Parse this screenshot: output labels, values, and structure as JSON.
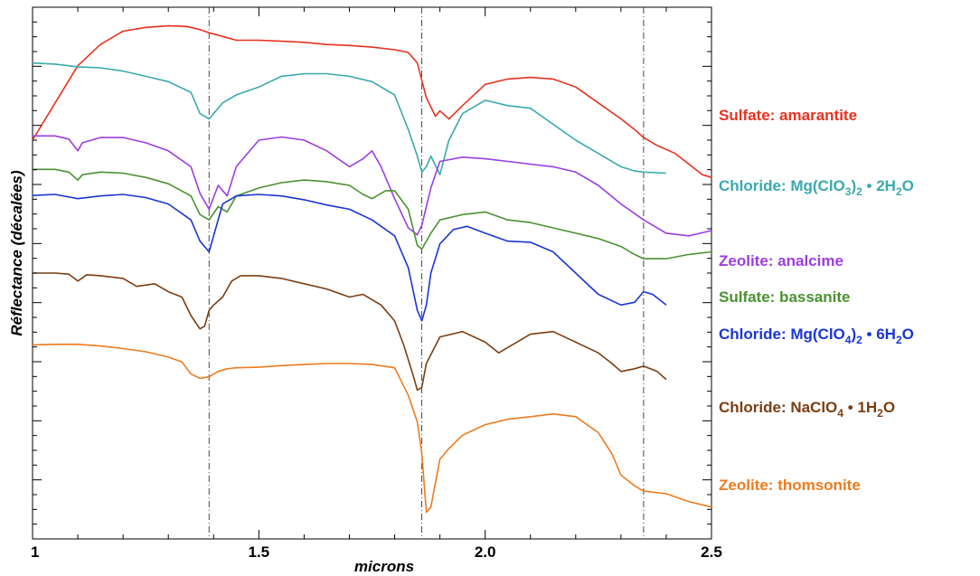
{
  "chart_data": {
    "type": "line",
    "xlabel": "microns",
    "ylabel": "Réflectance (décalées)",
    "xlim": [
      1.0,
      2.5
    ],
    "ylim": [
      0,
      1
    ],
    "xticks": [
      {
        "value": 1.0,
        "label": "1"
      },
      {
        "value": 1.5,
        "label": "1.5"
      },
      {
        "value": 2.0,
        "label": "2.0"
      },
      {
        "value": 2.5,
        "label": "2.5"
      }
    ],
    "yticks_shown_without_labels": true,
    "grid": false,
    "reference_lines_x": [
      1.39,
      1.86,
      2.35
    ],
    "legend": "right",
    "series": [
      {
        "name": "Sulfate: amarantite",
        "label_parts": [
          "Sulfate: amarantite"
        ],
        "color": "#e8321e",
        "x": [
          1.0,
          1.05,
          1.1,
          1.15,
          1.2,
          1.25,
          1.3,
          1.34,
          1.37,
          1.39,
          1.42,
          1.45,
          1.5,
          1.55,
          1.6,
          1.65,
          1.7,
          1.75,
          1.8,
          1.83,
          1.85,
          1.87,
          1.89,
          1.9,
          1.92,
          1.95,
          2.0,
          2.05,
          2.1,
          2.15,
          2.2,
          2.25,
          2.3,
          2.33,
          2.35,
          2.38,
          2.42,
          2.45,
          2.48,
          2.5
        ],
        "y": [
          0.75,
          0.82,
          0.89,
          0.93,
          0.955,
          0.962,
          0.965,
          0.964,
          0.958,
          0.952,
          0.945,
          0.938,
          0.938,
          0.936,
          0.934,
          0.93,
          0.928,
          0.925,
          0.92,
          0.915,
          0.895,
          0.83,
          0.795,
          0.805,
          0.79,
          0.815,
          0.855,
          0.865,
          0.868,
          0.865,
          0.85,
          0.82,
          0.79,
          0.77,
          0.755,
          0.74,
          0.725,
          0.705,
          0.685,
          0.68
        ]
      },
      {
        "name": "Chloride: Mg(ClO3)2 • 2H2O",
        "label_parts": [
          "Chloride: Mg(ClO",
          "3",
          ")",
          "2",
          " • 2H",
          "2",
          "O"
        ],
        "color": "#3aa9ad",
        "x": [
          1.0,
          1.05,
          1.1,
          1.15,
          1.2,
          1.25,
          1.3,
          1.35,
          1.37,
          1.39,
          1.4,
          1.42,
          1.45,
          1.5,
          1.55,
          1.6,
          1.65,
          1.7,
          1.75,
          1.8,
          1.83,
          1.85,
          1.86,
          1.87,
          1.88,
          1.9,
          1.92,
          1.95,
          2.0,
          2.05,
          2.1,
          2.15,
          2.2,
          2.25,
          2.3,
          2.33,
          2.35,
          2.4
        ],
        "y": [
          0.895,
          0.893,
          0.888,
          0.886,
          0.88,
          0.87,
          0.86,
          0.84,
          0.8,
          0.79,
          0.8,
          0.82,
          0.835,
          0.85,
          0.87,
          0.875,
          0.875,
          0.87,
          0.86,
          0.835,
          0.77,
          0.72,
          0.69,
          0.7,
          0.72,
          0.685,
          0.75,
          0.8,
          0.825,
          0.815,
          0.81,
          0.78,
          0.75,
          0.725,
          0.7,
          0.692,
          0.69,
          0.688
        ]
      },
      {
        "name": "Zeolite: analcime",
        "label_parts": [
          "Zeolite: analcime"
        ],
        "color": "#9b3de3",
        "x": [
          1.0,
          1.05,
          1.08,
          1.1,
          1.11,
          1.15,
          1.2,
          1.25,
          1.3,
          1.35,
          1.37,
          1.39,
          1.41,
          1.43,
          1.45,
          1.5,
          1.55,
          1.6,
          1.65,
          1.7,
          1.73,
          1.75,
          1.77,
          1.8,
          1.83,
          1.85,
          1.86,
          1.88,
          1.9,
          1.95,
          2.0,
          2.05,
          2.1,
          2.15,
          2.2,
          2.25,
          2.3,
          2.35,
          2.4,
          2.45,
          2.5
        ],
        "y": [
          0.758,
          0.758,
          0.752,
          0.73,
          0.745,
          0.755,
          0.755,
          0.745,
          0.73,
          0.7,
          0.65,
          0.62,
          0.665,
          0.645,
          0.7,
          0.75,
          0.756,
          0.75,
          0.73,
          0.7,
          0.715,
          0.73,
          0.7,
          0.64,
          0.585,
          0.572,
          0.59,
          0.66,
          0.71,
          0.718,
          0.715,
          0.71,
          0.705,
          0.7,
          0.69,
          0.665,
          0.63,
          0.6,
          0.575,
          0.57,
          0.58
        ]
      },
      {
        "name": "Sulfate: bassanite",
        "label_parts": [
          "Sulfate: bassanite"
        ],
        "color": "#4a9230",
        "x": [
          1.0,
          1.05,
          1.08,
          1.1,
          1.11,
          1.15,
          1.2,
          1.25,
          1.3,
          1.35,
          1.37,
          1.39,
          1.41,
          1.43,
          1.45,
          1.5,
          1.55,
          1.6,
          1.65,
          1.7,
          1.73,
          1.75,
          1.78,
          1.8,
          1.83,
          1.85,
          1.86,
          1.88,
          1.9,
          1.95,
          2.0,
          2.05,
          2.1,
          2.15,
          2.2,
          2.25,
          2.3,
          2.33,
          2.35,
          2.4,
          2.45,
          2.5
        ],
        "y": [
          0.695,
          0.695,
          0.69,
          0.675,
          0.685,
          0.69,
          0.688,
          0.68,
          0.668,
          0.645,
          0.61,
          0.6,
          0.625,
          0.615,
          0.645,
          0.66,
          0.67,
          0.675,
          0.672,
          0.665,
          0.648,
          0.64,
          0.655,
          0.655,
          0.62,
          0.552,
          0.545,
          0.575,
          0.6,
          0.61,
          0.615,
          0.6,
          0.595,
          0.585,
          0.575,
          0.565,
          0.55,
          0.535,
          0.527,
          0.527,
          0.535,
          0.54
        ]
      },
      {
        "name": "Chloride: Mg(ClO4)2 • 6H2O",
        "label_parts": [
          "Chloride: Mg(ClO",
          "4",
          ")",
          "2",
          " • 6H",
          "2",
          "O"
        ],
        "color": "#1a35d8",
        "x": [
          1.0,
          1.05,
          1.1,
          1.15,
          1.2,
          1.25,
          1.3,
          1.35,
          1.37,
          1.39,
          1.4,
          1.42,
          1.45,
          1.5,
          1.55,
          1.6,
          1.65,
          1.7,
          1.75,
          1.8,
          1.83,
          1.85,
          1.86,
          1.87,
          1.88,
          1.9,
          1.93,
          1.96,
          2.0,
          2.05,
          2.1,
          2.15,
          2.2,
          2.25,
          2.3,
          2.33,
          2.35,
          2.37,
          2.4
        ],
        "y": [
          0.646,
          0.648,
          0.64,
          0.645,
          0.648,
          0.642,
          0.63,
          0.6,
          0.56,
          0.54,
          0.57,
          0.63,
          0.645,
          0.648,
          0.645,
          0.638,
          0.628,
          0.62,
          0.6,
          0.57,
          0.51,
          0.43,
          0.41,
          0.44,
          0.5,
          0.555,
          0.582,
          0.588,
          0.575,
          0.56,
          0.558,
          0.54,
          0.5,
          0.46,
          0.44,
          0.445,
          0.465,
          0.46,
          0.44
        ]
      },
      {
        "name": "Chloride: NaClO4 • 1H2O",
        "label_parts": [
          "Chloride: NaClO",
          "4",
          " • 1H",
          "2",
          "O"
        ],
        "color": "#7a3e12",
        "x": [
          1.0,
          1.05,
          1.08,
          1.1,
          1.12,
          1.15,
          1.2,
          1.23,
          1.27,
          1.3,
          1.33,
          1.35,
          1.37,
          1.38,
          1.39,
          1.4,
          1.42,
          1.44,
          1.46,
          1.5,
          1.55,
          1.6,
          1.65,
          1.7,
          1.73,
          1.75,
          1.77,
          1.8,
          1.82,
          1.84,
          1.85,
          1.86,
          1.87,
          1.9,
          1.95,
          2.0,
          2.03,
          2.05,
          2.1,
          2.15,
          2.2,
          2.25,
          2.28,
          2.3,
          2.33,
          2.35,
          2.38,
          2.4
        ],
        "y": [
          0.5,
          0.5,
          0.498,
          0.485,
          0.497,
          0.495,
          0.49,
          0.475,
          0.48,
          0.465,
          0.455,
          0.42,
          0.395,
          0.4,
          0.43,
          0.44,
          0.455,
          0.485,
          0.495,
          0.495,
          0.49,
          0.48,
          0.47,
          0.455,
          0.46,
          0.45,
          0.44,
          0.41,
          0.365,
          0.31,
          0.28,
          0.285,
          0.33,
          0.38,
          0.39,
          0.37,
          0.35,
          0.36,
          0.385,
          0.39,
          0.37,
          0.35,
          0.33,
          0.315,
          0.32,
          0.325,
          0.315,
          0.3
        ]
      },
      {
        "name": "Zeolite: thomsonite",
        "label_parts": [
          "Zeolite: thomsonite"
        ],
        "color": "#ee7b1f",
        "x": [
          1.0,
          1.05,
          1.1,
          1.15,
          1.2,
          1.25,
          1.3,
          1.33,
          1.35,
          1.37,
          1.39,
          1.41,
          1.43,
          1.45,
          1.5,
          1.55,
          1.6,
          1.65,
          1.7,
          1.75,
          1.8,
          1.83,
          1.85,
          1.86,
          1.87,
          1.88,
          1.9,
          1.92,
          1.95,
          2.0,
          2.05,
          2.1,
          2.15,
          2.2,
          2.25,
          2.28,
          2.3,
          2.33,
          2.35,
          2.4,
          2.45,
          2.5
        ],
        "y": [
          0.365,
          0.366,
          0.366,
          0.363,
          0.358,
          0.352,
          0.342,
          0.333,
          0.31,
          0.302,
          0.305,
          0.315,
          0.32,
          0.322,
          0.323,
          0.326,
          0.328,
          0.33,
          0.33,
          0.328,
          0.322,
          0.27,
          0.22,
          0.16,
          0.05,
          0.06,
          0.15,
          0.17,
          0.195,
          0.215,
          0.225,
          0.23,
          0.235,
          0.23,
          0.2,
          0.16,
          0.12,
          0.1,
          0.09,
          0.085,
          0.07,
          0.06
        ]
      }
    ]
  }
}
